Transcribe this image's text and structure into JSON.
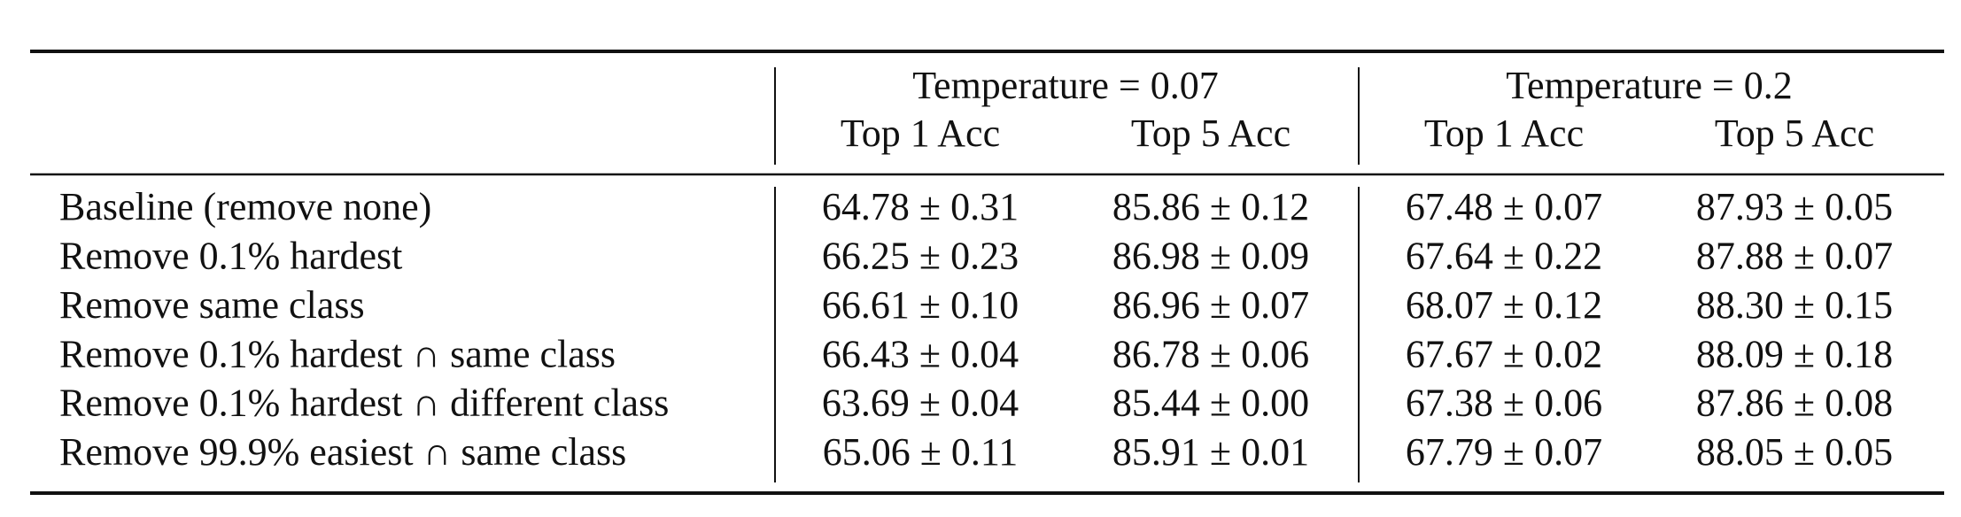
{
  "table": {
    "groups": [
      "Temperature = 0.07",
      "Temperature = 0.2"
    ],
    "columns": [
      "Top 1 Acc",
      "Top 5 Acc",
      "Top 1 Acc",
      "Top 5 Acc"
    ],
    "rows": [
      {
        "label": "Baseline (remove none)",
        "cells": [
          "64.78 ± 0.31",
          "85.86 ± 0.12",
          "67.48 ± 0.07",
          "87.93 ± 0.05"
        ]
      },
      {
        "label": "Remove 0.1% hardest",
        "cells": [
          "66.25 ± 0.23",
          "86.98 ± 0.09",
          "67.64 ± 0.22",
          "87.88 ± 0.07"
        ]
      },
      {
        "label": "Remove same class",
        "cells": [
          "66.61 ± 0.10",
          "86.96 ± 0.07",
          "68.07 ± 0.12",
          "88.30 ± 0.15"
        ]
      },
      {
        "label": "Remove 0.1% hardest ∩ same class",
        "cells": [
          "66.43 ± 0.04",
          "86.78 ± 0.06",
          "67.67 ± 0.02",
          "88.09 ± 0.18"
        ]
      },
      {
        "label": "Remove 0.1% hardest ∩ different class",
        "cells": [
          "63.69 ± 0.04",
          "85.44 ± 0.00",
          "67.38 ± 0.06",
          "87.86 ± 0.08"
        ]
      },
      {
        "label": "Remove 99.9% easiest ∩ same class",
        "cells": [
          "65.06 ± 0.11",
          "85.91 ± 0.01",
          "67.79 ± 0.07",
          "88.05 ± 0.05"
        ]
      }
    ]
  }
}
